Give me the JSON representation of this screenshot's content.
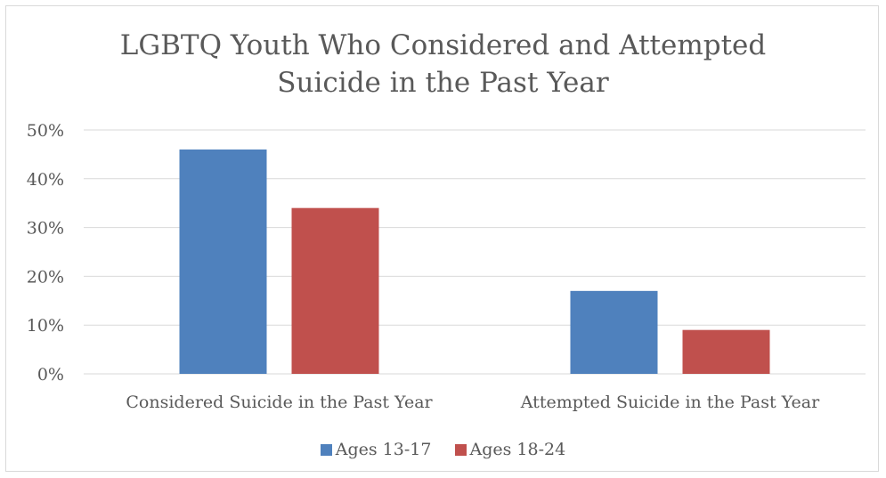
{
  "chart_data": {
    "type": "bar",
    "title": "LGBTQ Youth Who Considered and Attempted Suicide in the Past Year",
    "title_lines": [
      "LGBTQ Youth Who Considered and Attempted",
      "Suicide in the Past Year"
    ],
    "categories": [
      "Considered Suicide in the Past Year",
      "Attempted Suicide in the Past Year"
    ],
    "series": [
      {
        "name": "Ages 13-17",
        "color": "#4f81bd",
        "values": [
          46,
          17
        ]
      },
      {
        "name": "Ages 18-24",
        "color": "#c0504d",
        "values": [
          34,
          9
        ]
      }
    ],
    "y_ticks": [
      "0%",
      "10%",
      "20%",
      "30%",
      "40%",
      "50%"
    ],
    "ylim": [
      0,
      50
    ],
    "grid": true,
    "legend_position": "bottom",
    "xlabel": "",
    "ylabel": ""
  }
}
